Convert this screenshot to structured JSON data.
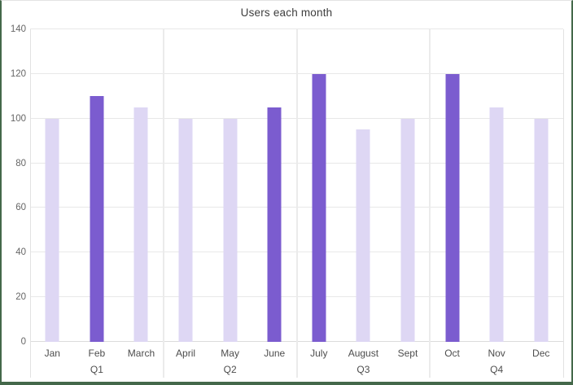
{
  "chart_data": {
    "type": "bar",
    "title": "Users each month",
    "categories": [
      "Jan",
      "Feb",
      "March",
      "April",
      "May",
      "June",
      "July",
      "August",
      "Sept",
      "Oct",
      "Nov",
      "Dec"
    ],
    "values": [
      100,
      110,
      105,
      100,
      100,
      105,
      120,
      95,
      100,
      120,
      105,
      100
    ],
    "highlighted": [
      false,
      true,
      false,
      false,
      false,
      true,
      true,
      false,
      false,
      true,
      false,
      false
    ],
    "group_labels": [
      "Q1",
      "Q2",
      "Q3",
      "Q4"
    ],
    "group_size": 3,
    "xlabel": "",
    "ylabel": "",
    "ylim": [
      0,
      140
    ],
    "yticks": [
      0,
      20,
      40,
      60,
      80,
      100,
      120,
      140
    ],
    "grid": true,
    "legend_position": "none",
    "colors": {
      "bar_default": "#ded7f4",
      "bar_highlight": "#7b5ccf",
      "gridline": "#e8e8e8",
      "frame_border": "#44684a",
      "title_text": "#3d3d3d",
      "tick_text": "#666666",
      "category_text": "#4d4d4d"
    }
  }
}
